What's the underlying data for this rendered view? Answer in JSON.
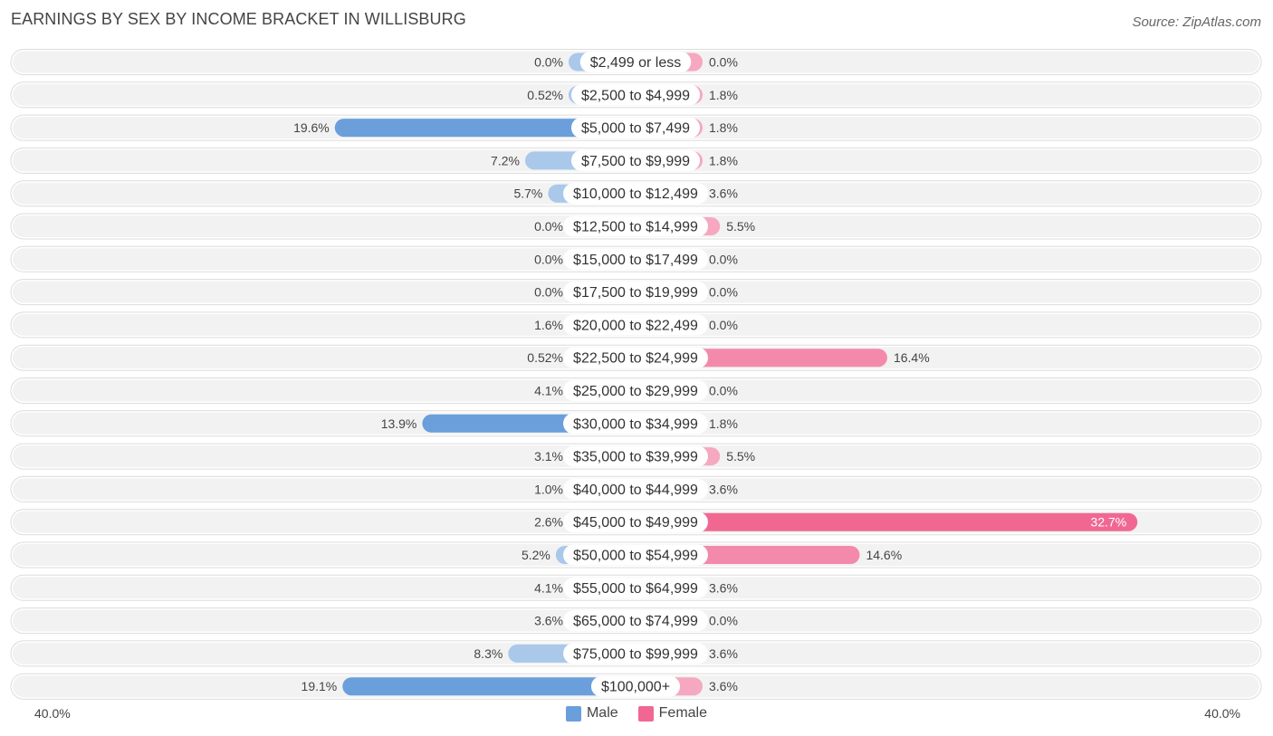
{
  "title": "EARNINGS BY SEX BY INCOME BRACKET IN WILLISBURG",
  "source": "Source: ZipAtlas.com",
  "colors": {
    "male_light": "#a9c8ea",
    "male_strong": "#6a9fdb",
    "female_light": "#f6a8c0",
    "female_strong": "#f06892",
    "row_bg": "#f2f2f2"
  },
  "legend": {
    "male": "Male",
    "female": "Female"
  },
  "axis": {
    "left_label": "40.0%",
    "right_label": "40.0%"
  },
  "chart_data": {
    "type": "bar",
    "orientation": "horizontal-diverging",
    "xlim": [
      -40,
      40
    ],
    "categories": [
      "$2,499 or less",
      "$2,500 to $4,999",
      "$5,000 to $7,499",
      "$7,500 to $9,999",
      "$10,000 to $12,499",
      "$12,500 to $14,999",
      "$15,000 to $17,499",
      "$17,500 to $19,999",
      "$20,000 to $22,499",
      "$22,500 to $24,999",
      "$25,000 to $29,999",
      "$30,000 to $34,999",
      "$35,000 to $39,999",
      "$40,000 to $44,999",
      "$45,000 to $49,999",
      "$50,000 to $54,999",
      "$55,000 to $64,999",
      "$65,000 to $74,999",
      "$75,000 to $99,999",
      "$100,000+"
    ],
    "series": [
      {
        "name": "Male",
        "values": [
          0.0,
          0.52,
          19.6,
          7.2,
          5.7,
          0.0,
          0.0,
          0.0,
          1.6,
          0.52,
          4.1,
          13.9,
          3.1,
          1.0,
          2.6,
          5.2,
          4.1,
          3.6,
          8.3,
          19.1
        ],
        "labels": [
          "0.0%",
          "0.52%",
          "19.6%",
          "7.2%",
          "5.7%",
          "0.0%",
          "0.0%",
          "0.0%",
          "1.6%",
          "0.52%",
          "4.1%",
          "13.9%",
          "3.1%",
          "1.0%",
          "2.6%",
          "5.2%",
          "4.1%",
          "3.6%",
          "8.3%",
          "19.1%"
        ]
      },
      {
        "name": "Female",
        "values": [
          0.0,
          1.8,
          1.8,
          1.8,
          3.6,
          5.5,
          0.0,
          0.0,
          0.0,
          16.4,
          0.0,
          1.8,
          5.5,
          3.6,
          32.7,
          14.6,
          3.6,
          0.0,
          3.6,
          3.6
        ],
        "labels": [
          "0.0%",
          "1.8%",
          "1.8%",
          "1.8%",
          "3.6%",
          "5.5%",
          "0.0%",
          "0.0%",
          "0.0%",
          "16.4%",
          "0.0%",
          "1.8%",
          "5.5%",
          "3.6%",
          "32.7%",
          "14.6%",
          "3.6%",
          "0.0%",
          "3.6%",
          "3.6%"
        ]
      }
    ]
  }
}
